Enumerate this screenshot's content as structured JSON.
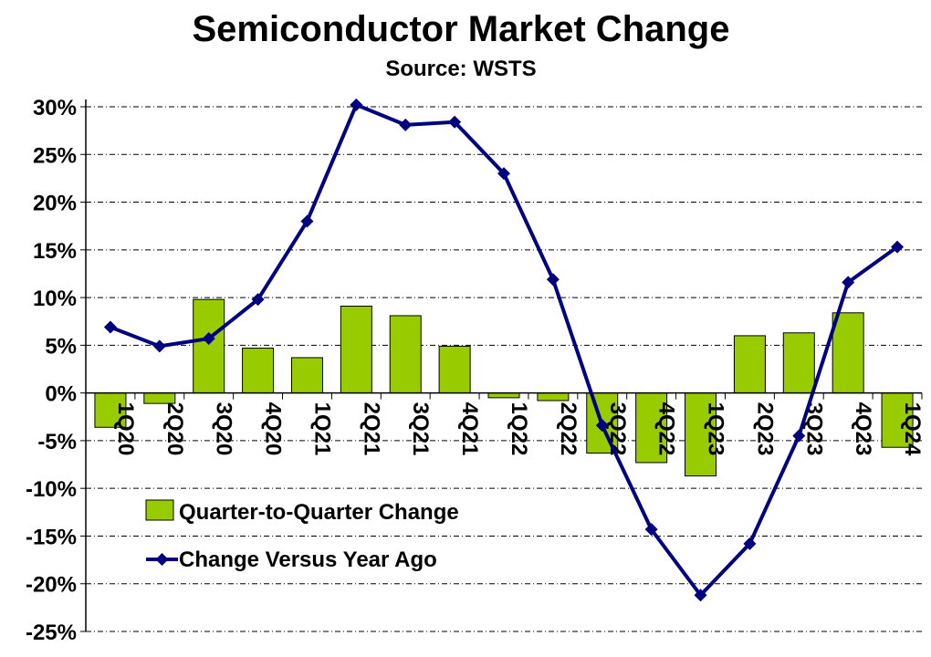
{
  "chart_data": {
    "type": "bar+line",
    "title": "Semiconductor Market Change",
    "subtitle": "Source: WSTS",
    "categories": [
      "1Q20",
      "2Q20",
      "3Q20",
      "4Q20",
      "1Q21",
      "2Q21",
      "3Q21",
      "4Q21",
      "1Q22",
      "2Q22",
      "3Q22",
      "4Q22",
      "1Q23",
      "2Q23",
      "3Q23",
      "4Q23",
      "1Q24"
    ],
    "series": [
      {
        "name": "Quarter-to-Quarter Change",
        "type": "bar",
        "color": "#99cc00",
        "values": [
          -3.6,
          -1.1,
          9.8,
          4.7,
          3.7,
          9.1,
          8.1,
          4.9,
          -0.5,
          -0.8,
          -6.3,
          -7.3,
          -8.7,
          6.0,
          6.3,
          8.4,
          -5.7
        ]
      },
      {
        "name": "Change Versus Year Ago",
        "type": "line",
        "color": "#000080",
        "values": [
          6.9,
          4.9,
          5.7,
          9.8,
          18.0,
          30.2,
          28.1,
          28.4,
          23.0,
          11.9,
          -3.4,
          -14.3,
          -21.2,
          -15.8,
          -4.5,
          11.6,
          15.3
        ]
      }
    ],
    "ylim": [
      -25,
      30
    ],
    "yticks": [
      "30%",
      "25%",
      "20%",
      "15%",
      "10%",
      "5%",
      "0%",
      "-5%",
      "-10%",
      "-15%",
      "-20%",
      "-25%"
    ],
    "grid": true,
    "legend_position": "lower-left"
  }
}
